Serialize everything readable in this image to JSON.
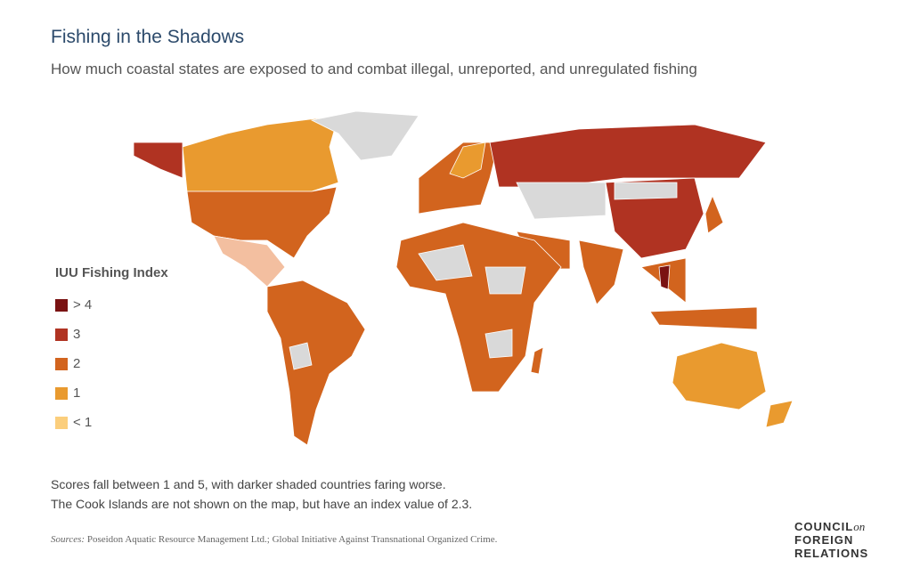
{
  "header": {
    "title": "Fishing in the Shadows",
    "subtitle": "How much coastal states are exposed to and combat illegal, unreported, and unregulated fishing"
  },
  "legend": {
    "title": "IUU Fishing Index",
    "items": [
      {
        "label": "> 4",
        "color": "#7a1212"
      },
      {
        "label": "3",
        "color": "#b03322"
      },
      {
        "label": "2",
        "color": "#d2641e"
      },
      {
        "label": "1",
        "color": "#e99a2f"
      },
      {
        "label": "< 1",
        "color": "#fbce7c"
      }
    ]
  },
  "notes": [
    "Scores fall between 1 and 5, with darker shaded countries faring worse.",
    "The Cook Islands are not shown on the map, but have an index value of 2.3."
  ],
  "sources": {
    "label": "Sources:",
    "text": "Poseidon Aquatic Resource Management Ltd.; Global Initiative Against Transnational Organized Crime."
  },
  "logo": {
    "lines": [
      "COUNCIL",
      "on",
      "FOREIGN",
      "RELATIONS"
    ]
  }
}
